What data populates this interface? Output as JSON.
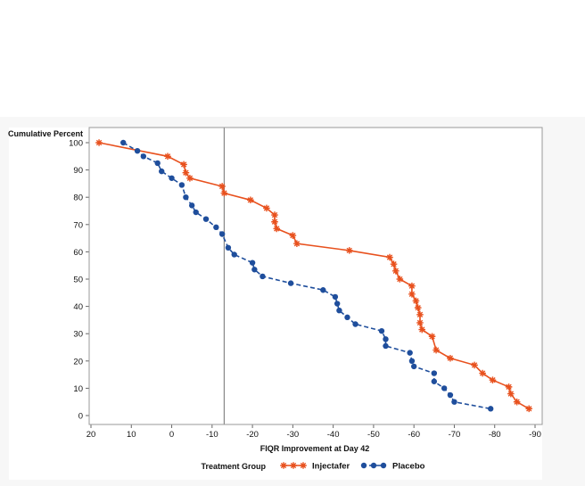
{
  "chart_data": {
    "type": "line",
    "ylabel": "Cumulative Percent",
    "xlabel": "FIQR Improvement at Day 42",
    "xlim": [
      20,
      -90
    ],
    "ylim": [
      0,
      100
    ],
    "x_ticks": [
      20,
      10,
      0,
      -10,
      -20,
      -30,
      -40,
      -50,
      -60,
      -70,
      -80,
      -90
    ],
    "x_tick_labels": [
      "20",
      "10",
      "0",
      "-10",
      "-20",
      "-30",
      "-40",
      "-50",
      "-60",
      "-70",
      "-80",
      "-90"
    ],
    "y_ticks": [
      0,
      10,
      20,
      30,
      40,
      50,
      60,
      70,
      80,
      90,
      100
    ],
    "y_tick_labels": [
      "0",
      "10",
      "20",
      "30",
      "40",
      "50",
      "60",
      "70",
      "80",
      "90",
      "100"
    ],
    "reference_line_x": -13,
    "legend": {
      "title": "Treatment Group",
      "position": "bottom"
    },
    "series": [
      {
        "name": "Injectafer",
        "color": "#e8511e",
        "marker": "star",
        "style": "solid",
        "points": [
          [
            18,
            100
          ],
          [
            1,
            95
          ],
          [
            -3,
            92
          ],
          [
            -3.5,
            89
          ],
          [
            -4.5,
            87
          ],
          [
            -12.5,
            84
          ],
          [
            -13,
            81.5
          ],
          [
            -19.5,
            79
          ],
          [
            -23.5,
            76
          ],
          [
            -25.5,
            73.5
          ],
          [
            -25.5,
            71
          ],
          [
            -26,
            68.5
          ],
          [
            -30,
            66
          ],
          [
            -31,
            63
          ],
          [
            -44,
            60.5
          ],
          [
            -54,
            58
          ],
          [
            -55,
            55.5
          ],
          [
            -55.5,
            53
          ],
          [
            -56.5,
            50
          ],
          [
            -59.5,
            47.5
          ],
          [
            -59.5,
            44.5
          ],
          [
            -60.5,
            42
          ],
          [
            -61,
            39.5
          ],
          [
            -61.5,
            37
          ],
          [
            -61.5,
            34
          ],
          [
            -62,
            31.5
          ],
          [
            -64.5,
            29
          ],
          [
            -65.5,
            24
          ],
          [
            -69,
            21
          ],
          [
            -75,
            18.5
          ],
          [
            -77,
            15.5
          ],
          [
            -79.5,
            13
          ],
          [
            -83.5,
            10.5
          ],
          [
            -84,
            8
          ],
          [
            -85.5,
            5
          ],
          [
            -88.5,
            2.5
          ]
        ]
      },
      {
        "name": "Placebo",
        "color": "#1f4e9c",
        "marker": "circle",
        "style": "dashed",
        "points": [
          [
            12,
            100
          ],
          [
            8.5,
            97
          ],
          [
            7,
            95
          ],
          [
            3.5,
            92.5
          ],
          [
            2.5,
            89.5
          ],
          [
            0,
            87
          ],
          [
            -2.5,
            84.5
          ],
          [
            -3.5,
            80
          ],
          [
            -5,
            77
          ],
          [
            -6,
            74.5
          ],
          [
            -8.5,
            72
          ],
          [
            -11,
            69
          ],
          [
            -12.5,
            66.5
          ],
          [
            -14,
            61.5
          ],
          [
            -15.5,
            59
          ],
          [
            -20,
            56
          ],
          [
            -20.5,
            53.5
          ],
          [
            -22.5,
            51
          ],
          [
            -29.5,
            48.5
          ],
          [
            -37.5,
            46
          ],
          [
            -40.5,
            43.5
          ],
          [
            -41,
            41
          ],
          [
            -41.5,
            38.5
          ],
          [
            -43.5,
            36
          ],
          [
            -45.5,
            33.5
          ],
          [
            -52,
            31
          ],
          [
            -53,
            28
          ],
          [
            -53,
            25.5
          ],
          [
            -59,
            23
          ],
          [
            -59.5,
            20
          ],
          [
            -60,
            18
          ],
          [
            -65,
            15.5
          ],
          [
            -65,
            12.5
          ],
          [
            -67.5,
            10
          ],
          [
            -69,
            7.5
          ],
          [
            -70,
            5
          ],
          [
            -79,
            2.5
          ]
        ]
      }
    ]
  }
}
